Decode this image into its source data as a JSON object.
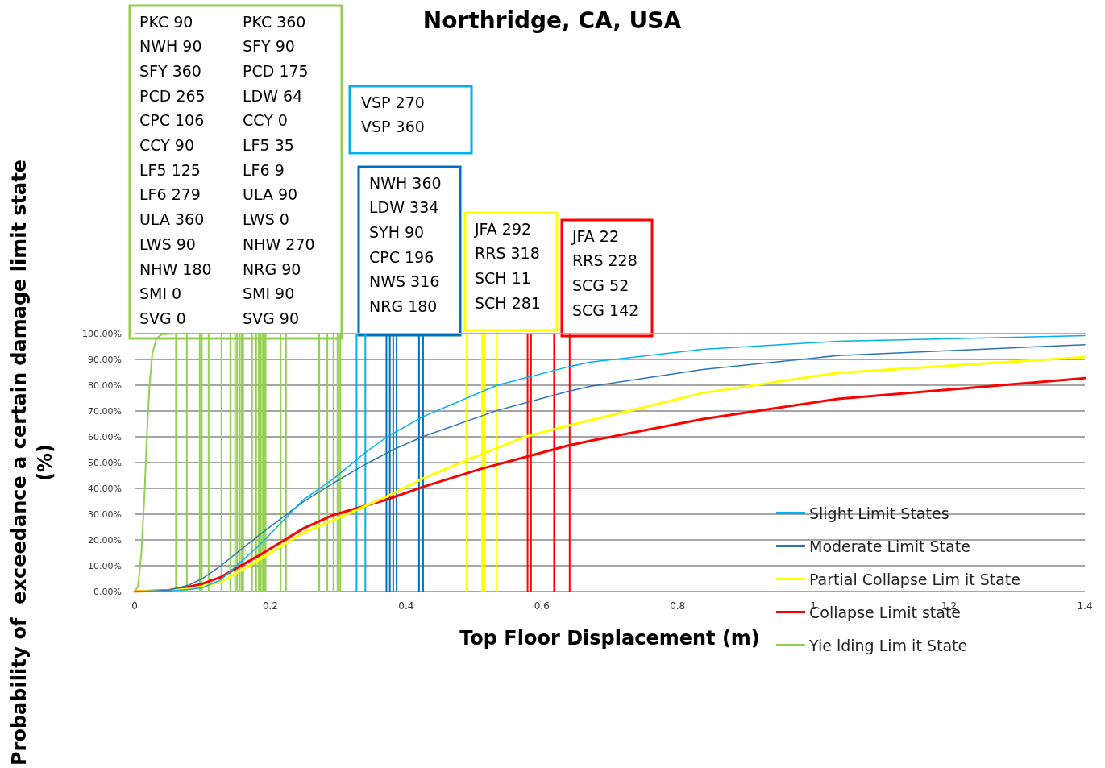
{
  "chart_data": {
    "type": "line",
    "title": "Northridge, CA, USA",
    "xlabel": "Top Floor Displacement (m)",
    "ylabel": "Probability of  exceedance a certain damage limit state\n(%)",
    "xlim": [
      0,
      1.4
    ],
    "xticks": [
      0,
      0.2,
      0.4,
      0.6,
      0.8,
      1,
      1.2,
      1.4
    ],
    "ylim": [
      0,
      100
    ],
    "yticks": [
      {
        "value": 0,
        "label": "0.00%"
      },
      {
        "value": 10,
        "label": "10.00%"
      },
      {
        "value": 20,
        "label": "20.00%"
      },
      {
        "value": 30,
        "label": "30.00%"
      },
      {
        "value": 40,
        "label": "40.00%"
      },
      {
        "value": 50,
        "label": "50.00%"
      },
      {
        "value": 60,
        "label": "60.00%"
      },
      {
        "value": 70,
        "label": "70.00%"
      },
      {
        "value": 80,
        "label": "80.00%"
      },
      {
        "value": 90,
        "label": "90.00%"
      },
      {
        "value": 100,
        "label": "100.00%"
      }
    ],
    "grid": "y",
    "legend": "bottom right",
    "marker": "none",
    "line_style": "solid",
    "series": [
      {
        "name": "Slight Limit States",
        "color": "#00b0f0",
        "x": [
          0,
          0.05,
          0.08,
          0.1,
          0.127,
          0.184,
          0.249,
          0.293,
          0.337,
          0.372,
          0.424,
          0.534,
          0.637,
          0.672,
          0.837,
          1.036,
          1.4
        ],
        "values": [
          0,
          0.2,
          0.8,
          1.5,
          4.5,
          18,
          35.7,
          43.7,
          53.3,
          60,
          67.7,
          80,
          87,
          89,
          93.9,
          97,
          99.2
        ]
      },
      {
        "name": "Moderate Limit State",
        "color": "#2e75b6",
        "x": [
          0,
          0.05,
          0.08,
          0.1,
          0.127,
          0.184,
          0.249,
          0.293,
          0.337,
          0.381,
          0.424,
          0.534,
          0.637,
          0.672,
          0.837,
          1.036,
          1.4
        ],
        "values": [
          0,
          0.5,
          2.5,
          5,
          10,
          22,
          34.9,
          42.1,
          48.9,
          55,
          60,
          70.2,
          77.5,
          79.6,
          86.1,
          91.5,
          95.7
        ]
      },
      {
        "name": "Partial Collapse Lim it State",
        "color": "#ffff00",
        "x": [
          0,
          0.05,
          0.08,
          0.1,
          0.127,
          0.184,
          0.249,
          0.293,
          0.372,
          0.424,
          0.489,
          0.575,
          0.637,
          0.837,
          1.036,
          1.4
        ],
        "values": [
          0,
          0.3,
          1,
          2,
          3.7,
          12.4,
          22.9,
          27.7,
          36.9,
          43.7,
          50.9,
          60,
          64.2,
          77,
          84.8,
          90.9
        ]
      },
      {
        "name": "Collapse Limit state",
        "color": "#ff0000",
        "x": [
          0,
          0.05,
          0.08,
          0.1,
          0.127,
          0.184,
          0.249,
          0.293,
          0.372,
          0.424,
          0.512,
          0.582,
          0.637,
          0.673,
          0.837,
          1.036,
          1.4
        ],
        "values": [
          0,
          0.5,
          1.8,
          3,
          5.6,
          14.1,
          24.5,
          29.7,
          35.7,
          40.5,
          47.7,
          52.6,
          56.5,
          58.5,
          66.9,
          74.7,
          82.7
        ]
      },
      {
        "name": "Yie lding Lim it State",
        "color": "#92d050",
        "x": [
          0,
          0.005,
          0.01,
          0.015,
          0.018,
          0.022,
          0.026,
          0.032,
          0.04,
          0.06,
          1.4
        ],
        "values": [
          0,
          2,
          15,
          40,
          60,
          80,
          92,
          98,
          99.7,
          100,
          100
        ]
      }
    ],
    "ref_lines": [
      {
        "axis": "x",
        "value": 0.061,
        "color": "#92d050"
      },
      {
        "axis": "x",
        "value": 0.077,
        "color": "#92d050"
      },
      {
        "axis": "x",
        "value": 0.096,
        "color": "#92d050"
      },
      {
        "axis": "x",
        "value": 0.099,
        "color": "#92d050"
      },
      {
        "axis": "x",
        "value": 0.109,
        "color": "#92d050"
      },
      {
        "axis": "x",
        "value": 0.128,
        "color": "#92d050"
      },
      {
        "axis": "x",
        "value": 0.141,
        "color": "#92d050"
      },
      {
        "axis": "x",
        "value": 0.148,
        "color": "#92d050"
      },
      {
        "axis": "x",
        "value": 0.151,
        "color": "#92d050"
      },
      {
        "axis": "x",
        "value": 0.155,
        "color": "#92d050"
      },
      {
        "axis": "x",
        "value": 0.158,
        "color": "#92d050"
      },
      {
        "axis": "x",
        "value": 0.16,
        "color": "#92d050"
      },
      {
        "axis": "x",
        "value": 0.173,
        "color": "#92d050"
      },
      {
        "axis": "x",
        "value": 0.179,
        "color": "#92d050"
      },
      {
        "axis": "x",
        "value": 0.183,
        "color": "#92d050"
      },
      {
        "axis": "x",
        "value": 0.186,
        "color": "#92d050"
      },
      {
        "axis": "x",
        "value": 0.189,
        "color": "#92d050"
      },
      {
        "axis": "x",
        "value": 0.191,
        "color": "#92d050"
      },
      {
        "axis": "x",
        "value": 0.193,
        "color": "#92d050"
      },
      {
        "axis": "x",
        "value": 0.215,
        "color": "#92d050"
      },
      {
        "axis": "x",
        "value": 0.223,
        "color": "#92d050"
      },
      {
        "axis": "x",
        "value": 0.272,
        "color": "#92d050"
      },
      {
        "axis": "x",
        "value": 0.284,
        "color": "#92d050"
      },
      {
        "axis": "x",
        "value": 0.293,
        "color": "#92d050"
      },
      {
        "axis": "x",
        "value": 0.299,
        "color": "#92d050"
      },
      {
        "axis": "x",
        "value": 0.303,
        "color": "#92d050"
      },
      {
        "axis": "x",
        "value": 0.327,
        "color": "#00b0f0"
      },
      {
        "axis": "x",
        "value": 0.34,
        "color": "#00b0f0"
      },
      {
        "axis": "x",
        "value": 0.371,
        "color": "#0070c0"
      },
      {
        "axis": "x",
        "value": 0.376,
        "color": "#0070c0"
      },
      {
        "axis": "x",
        "value": 0.381,
        "color": "#0070c0"
      },
      {
        "axis": "x",
        "value": 0.386,
        "color": "#0070c0"
      },
      {
        "axis": "x",
        "value": 0.419,
        "color": "#0070c0"
      },
      {
        "axis": "x",
        "value": 0.425,
        "color": "#0070c0"
      },
      {
        "axis": "x",
        "value": 0.489,
        "color": "#ffff00"
      },
      {
        "axis": "x",
        "value": 0.512,
        "color": "#ffff00"
      },
      {
        "axis": "x",
        "value": 0.516,
        "color": "#ffff00"
      },
      {
        "axis": "x",
        "value": 0.533,
        "color": "#ffff00"
      },
      {
        "axis": "x",
        "value": 0.579,
        "color": "#ff0000"
      },
      {
        "axis": "x",
        "value": 0.584,
        "color": "#ff0000"
      },
      {
        "axis": "x",
        "value": 0.618,
        "color": "#ff0000"
      },
      {
        "axis": "x",
        "value": 0.641,
        "color": "#ff0000"
      }
    ],
    "annotations": [
      "PKC 90\tPKC 360\nNWH 90\tSFY 90\nSFY 360\tPCD 175\nPCD 265\tLDW 64\nCPC 106\tCCY 0\nCCY 90\tLF5 35\nLF5 125\tLF6 9\nLF6 279\tULA 90\nULA 360\tLWS 0\nLWS 90\tNHW 270\nNHW 180\tNRG 90\nSMI 0\tSMI 90\nSVG 0\tSVG 90",
      "VSP 270\nVSP 360",
      "NWH 360\nLDW 334\nSYH 90\nCPC 196\nNWS 316\nNRG 180",
      "JFA 292\nRRS 318\nSCH 11\nSCH 281",
      "JFA 22\nRRS 228\nSCG 52\nSCG 142"
    ]
  }
}
